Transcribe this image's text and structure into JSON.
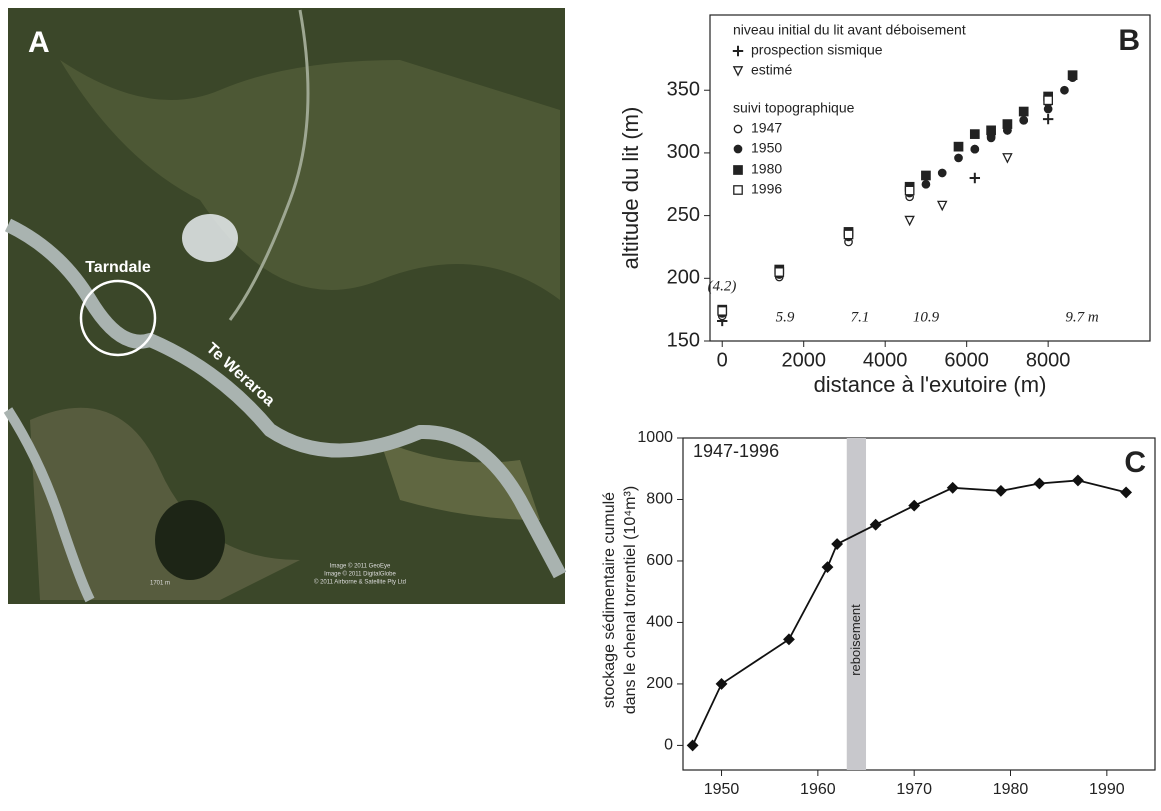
{
  "panel_a": {
    "label": "A",
    "places": [
      "Tarndale",
      "Te Weraroa"
    ],
    "scale": "1701 m",
    "credits": [
      "Image © 2011 GeoEye",
      "Image © 2011 DigitalGlobe",
      "© 2011 Airborne & Satellite Pty Ltd"
    ]
  },
  "chart_data": [
    {
      "type": "scatter",
      "label": "B",
      "x_label": "distance à l'exutoire (m)",
      "y_label": "altitude du lit (m)",
      "xlim": [
        -300,
        10500
      ],
      "xticks": [
        0,
        2000,
        4000,
        6000,
        8000
      ],
      "ylim": [
        150,
        410
      ],
      "yticks": [
        150,
        200,
        250,
        300,
        350
      ],
      "legend_titles": [
        "niveau initial du lit avant déboisement",
        "suivi topographique"
      ],
      "annotations": [
        "(4.2)",
        "5.9",
        "7.1",
        "10.9",
        "9.7 m"
      ],
      "series": [
        {
          "name": "prospection sismique",
          "marker": "plus",
          "color": "#222",
          "x": [
            0,
            6200,
            8000
          ],
          "values": [
            166,
            280,
            327
          ]
        },
        {
          "name": "estimé",
          "marker": "triangle-down-open",
          "color": "#222",
          "x": [
            4600,
            5400,
            7000
          ],
          "values": [
            246,
            258,
            296
          ]
        },
        {
          "name": "1947",
          "marker": "circle-open",
          "color": "#222",
          "x": [
            0,
            1400,
            3100,
            4600,
            6200,
            6600,
            7000,
            7400,
            8000,
            8600
          ],
          "values": [
            170,
            201,
            229,
            265,
            303,
            313,
            318,
            326,
            340,
            362
          ]
        },
        {
          "name": "1950",
          "marker": "circle",
          "color": "#222",
          "x": [
            0,
            1400,
            3100,
            4600,
            5000,
            5400,
            5800,
            6200,
            6600,
            7000,
            7400,
            8000,
            8400,
            8600
          ],
          "values": [
            172,
            203,
            233,
            268,
            275,
            284,
            296,
            303,
            312,
            318,
            326,
            335,
            350,
            360
          ]
        },
        {
          "name": "1980",
          "marker": "square",
          "color": "#222",
          "x": [
            0,
            1400,
            3100,
            4600,
            5000,
            5800,
            6200,
            6600,
            7000,
            7400,
            8000,
            8600
          ],
          "values": [
            175,
            207,
            237,
            273,
            282,
            305,
            315,
            318,
            323,
            333,
            345,
            362
          ]
        },
        {
          "name": "1996",
          "marker": "square-open",
          "color": "#222",
          "x": [
            0,
            1400,
            3100,
            4600,
            8000
          ],
          "values": [
            174,
            205,
            235,
            270,
            342
          ]
        }
      ]
    },
    {
      "type": "line",
      "label": "C",
      "period": "1947-1996",
      "y_label": [
        "stockage sédimentaire cumulé",
        "dans le chenal torrentiel (10⁴m³)"
      ],
      "xlim": [
        1946,
        1995
      ],
      "xticks": [
        1950,
        1960,
        1970,
        1980,
        1990
      ],
      "ylim": [
        -80,
        1000
      ],
      "yticks": [
        0,
        200,
        400,
        600,
        800,
        1000
      ],
      "band": {
        "label": "reboisement",
        "range": [
          1963,
          1965
        ],
        "color": "#c8c8cc"
      },
      "color": "#111",
      "x": [
        1947,
        1950,
        1957,
        1961,
        1962,
        1966,
        1970,
        1974,
        1979,
        1983,
        1987,
        1992
      ],
      "values": [
        0,
        200,
        345,
        580,
        655,
        718,
        780,
        838,
        828,
        852,
        862,
        823
      ]
    }
  ]
}
